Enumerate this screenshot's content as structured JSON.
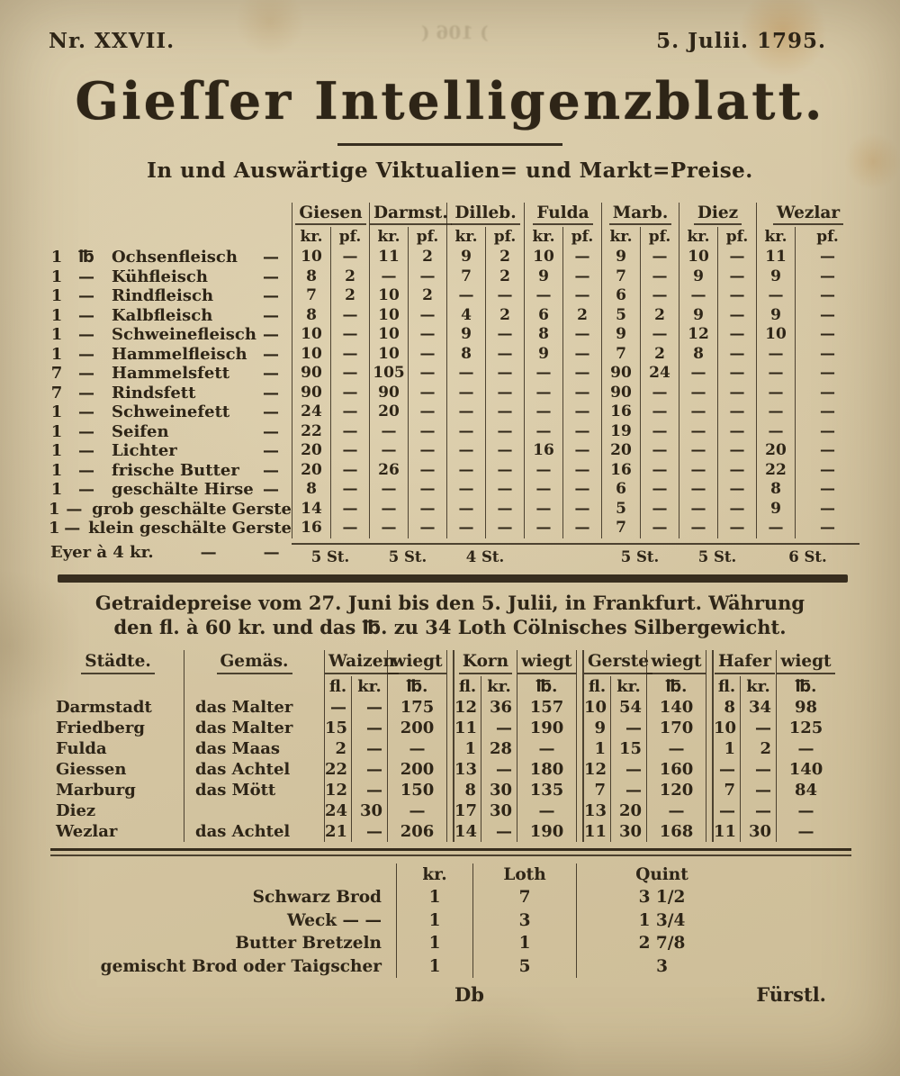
{
  "masthead": {
    "issue_number": "Nr.  XXVII.",
    "date": "5. Julii. 1795.",
    "bleedthrough": ") 106 ("
  },
  "title": "Gieſſer Intelligenzblatt.",
  "subtitle": "In und Auswärtige Viktualien= und Markt=Preise.",
  "market_table": {
    "cities": [
      "Giesen",
      "Darmst.",
      "Dilleb.",
      "Fulda",
      "Marb.",
      "Diez",
      "Wezlar"
    ],
    "kr_label": "kr.",
    "pf_label": "pf.",
    "rows": [
      {
        "qty": "1",
        "unit": "℔",
        "name": "Ochsenfleisch",
        "trail": "—",
        "v": [
          "10",
          "—",
          "11",
          "2",
          "9",
          "2",
          "10",
          "—",
          "9",
          "—",
          "10",
          "—",
          "11",
          "—"
        ]
      },
      {
        "qty": "1",
        "unit": "—",
        "name": "Kühfleisch",
        "trail": "—",
        "v": [
          "8",
          "2",
          "—",
          "—",
          "7",
          "2",
          "9",
          "—",
          "7",
          "—",
          "9",
          "—",
          "9",
          "—"
        ]
      },
      {
        "qty": "1",
        "unit": "—",
        "name": "Rindfleisch",
        "trail": "—",
        "v": [
          "7",
          "2",
          "10",
          "2",
          "—",
          "—",
          "—",
          "—",
          "6",
          "—",
          "—",
          "—",
          "—",
          "—"
        ]
      },
      {
        "qty": "1",
        "unit": "—",
        "name": "Kalbfleisch",
        "trail": "—",
        "v": [
          "8",
          "—",
          "10",
          "—",
          "4",
          "2",
          "6",
          "2",
          "5",
          "2",
          "9",
          "—",
          "9",
          "—"
        ]
      },
      {
        "qty": "1",
        "unit": "—",
        "name": "Schweinefleisch",
        "trail": "—",
        "v": [
          "10",
          "—",
          "10",
          "—",
          "9",
          "—",
          "8",
          "—",
          "9",
          "—",
          "12",
          "—",
          "10",
          "—"
        ]
      },
      {
        "qty": "1",
        "unit": "—",
        "name": "Hammelfleisch",
        "trail": "—",
        "v": [
          "10",
          "—",
          "10",
          "—",
          "8",
          "—",
          "9",
          "—",
          "7",
          "2",
          "8",
          "—",
          "—",
          "—"
        ]
      },
      {
        "qty": "7",
        "unit": "—",
        "name": "Hammelsfett",
        "trail": "—",
        "v": [
          "90",
          "—",
          "105",
          "—",
          "—",
          "—",
          "—",
          "—",
          "90",
          "24",
          "—",
          "—",
          "—",
          "—"
        ]
      },
      {
        "qty": "7",
        "unit": "—",
        "name": "Rindsfett",
        "trail": "—",
        "v": [
          "90",
          "—",
          "90",
          "—",
          "—",
          "—",
          "—",
          "—",
          "90",
          "—",
          "—",
          "—",
          "—",
          "—"
        ]
      },
      {
        "qty": "1",
        "unit": "—",
        "name": "Schweinefett",
        "trail": "—",
        "v": [
          "24",
          "—",
          "20",
          "—",
          "—",
          "—",
          "—",
          "—",
          "16",
          "—",
          "—",
          "—",
          "—",
          "—"
        ]
      },
      {
        "qty": "1",
        "unit": "—",
        "name": "Seifen",
        "trail": "—",
        "v": [
          "22",
          "—",
          "—",
          "—",
          "—",
          "—",
          "—",
          "—",
          "19",
          "—",
          "—",
          "—",
          "—",
          "—"
        ]
      },
      {
        "qty": "1",
        "unit": "—",
        "name": "Lichter",
        "trail": "—",
        "v": [
          "20",
          "—",
          "—",
          "—",
          "—",
          "—",
          "16",
          "—",
          "20",
          "—",
          "—",
          "—",
          "20",
          "—"
        ]
      },
      {
        "qty": "1",
        "unit": "—",
        "name": "frische Butter",
        "trail": "—",
        "v": [
          "20",
          "—",
          "26",
          "—",
          "—",
          "—",
          "—",
          "—",
          "16",
          "—",
          "—",
          "—",
          "22",
          "—"
        ]
      },
      {
        "qty": "1",
        "unit": "—",
        "name": "geschälte Hirse",
        "trail": "—",
        "v": [
          "8",
          "—",
          "—",
          "—",
          "—",
          "—",
          "—",
          "—",
          "6",
          "—",
          "—",
          "—",
          "8",
          "—"
        ]
      },
      {
        "qty": "1",
        "unit": "—",
        "name": "grob geschälte Gerste",
        "trail": "",
        "v": [
          "14",
          "—",
          "—",
          "—",
          "—",
          "—",
          "—",
          "—",
          "5",
          "—",
          "—",
          "—",
          "9",
          "—"
        ]
      },
      {
        "qty": "1",
        "unit": "—",
        "name": "klein geschälte Gerste",
        "trail": "",
        "v": [
          "16",
          "—",
          "—",
          "—",
          "—",
          "—",
          "—",
          "—",
          "7",
          "—",
          "—",
          "—",
          "—",
          "—"
        ]
      }
    ],
    "eggs": {
      "label": "Eyer à 4 kr.",
      "dashes": [
        "—",
        "—"
      ],
      "values": [
        "5 St.",
        "5 St.",
        "4 St.",
        "",
        "5 St.",
        "5 St.",
        "6 St."
      ]
    }
  },
  "grain_section": {
    "heading_line1": "Getraidepreise vom 27. Juni bis den 5. Julii, in Frankfurt. Währung",
    "heading_line2": "den fl. à 60 kr. und das ℔. zu 34 Loth Cölnisches Silbergewicht.",
    "table": {
      "staedte_header": "Städte.",
      "gemaes_header": "Gemäs.",
      "wiegt_label": "wiegt",
      "fl_label": "fl.",
      "kr_label": "kr.",
      "lb_label": "℔.",
      "grains": [
        "Waizen",
        "Korn",
        "Gerste",
        "Hafer"
      ],
      "rows": [
        {
          "city": "Darmstadt",
          "measure": "das Malter",
          "v": [
            "—",
            "—",
            "175",
            "12",
            "36",
            "157",
            "10",
            "54",
            "140",
            "8",
            "34",
            "98"
          ]
        },
        {
          "city": "Friedberg",
          "measure": "das Malter",
          "v": [
            "15",
            "—",
            "200",
            "11",
            "—",
            "190",
            "9",
            "—",
            "170",
            "10",
            "—",
            "125"
          ]
        },
        {
          "city": "Fulda",
          "measure": "das Maas",
          "v": [
            "2",
            "—",
            "—",
            "1",
            "28",
            "—",
            "1",
            "15",
            "—",
            "1",
            "2",
            "—"
          ]
        },
        {
          "city": "Giessen",
          "measure": "das Achtel",
          "v": [
            "22",
            "—",
            "200",
            "13",
            "—",
            "180",
            "12",
            "—",
            "160",
            "—",
            "—",
            "140"
          ]
        },
        {
          "city": "Marburg",
          "measure": "das Mött",
          "v": [
            "12",
            "—",
            "150",
            "8",
            "30",
            "135",
            "7",
            "—",
            "120",
            "7",
            "—",
            "84"
          ]
        },
        {
          "city": "Diez",
          "measure": "",
          "v": [
            "24",
            "30",
            "—",
            "17",
            "30",
            "—",
            "13",
            "20",
            "—",
            "—",
            "—",
            "—"
          ]
        },
        {
          "city": "Wezlar",
          "measure": "das Achtel",
          "v": [
            "21",
            "—",
            "206",
            "14",
            "—",
            "190",
            "11",
            "30",
            "168",
            "11",
            "30",
            "—"
          ]
        }
      ]
    }
  },
  "bread_table": {
    "kr_header": "kr.",
    "loth_header": "Loth",
    "quint_header": "Quint",
    "rows": [
      {
        "name": "Schwarz Brod",
        "kr": "1",
        "loth": "7",
        "quint": "3 1/2"
      },
      {
        "name": "Weck  —  —",
        "kr": "1",
        "loth": "3",
        "quint": "1 3/4"
      },
      {
        "name": "Butter Bretzeln",
        "kr": "1",
        "loth": "1",
        "quint": "2 7/8"
      },
      {
        "name": "gemischt Brod oder Taigscher",
        "kr": "1",
        "loth": "5",
        "quint": "3"
      }
    ]
  },
  "footer": {
    "signature_mark": "Db",
    "catchword": "Fürstl."
  }
}
